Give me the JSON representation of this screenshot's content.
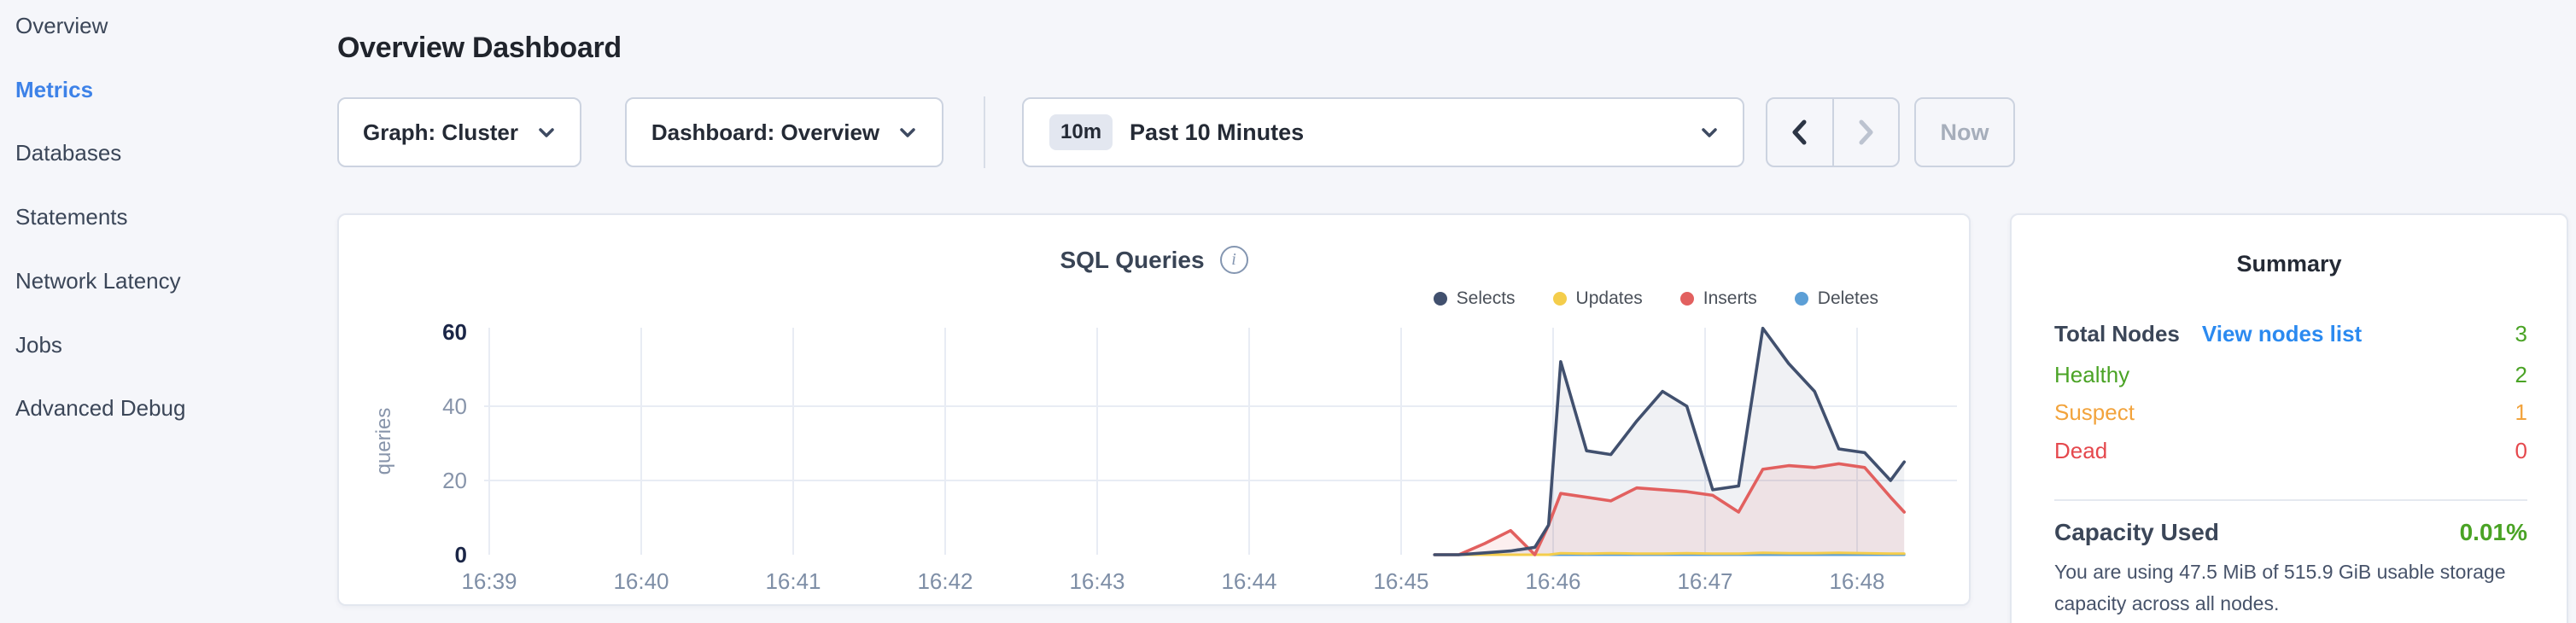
{
  "sidebar": {
    "items": [
      {
        "label": "Overview",
        "active": false
      },
      {
        "label": "Metrics",
        "active": true
      },
      {
        "label": "Databases",
        "active": false
      },
      {
        "label": "Statements",
        "active": false
      },
      {
        "label": "Network Latency",
        "active": false
      },
      {
        "label": "Jobs",
        "active": false
      },
      {
        "label": "Advanced Debug",
        "active": false
      }
    ]
  },
  "header": {
    "title": "Overview Dashboard"
  },
  "controls": {
    "graph_label": "Graph: Cluster",
    "dashboard_label": "Dashboard: Overview",
    "time_badge": "10m",
    "time_label": "Past 10 Minutes",
    "now_label": "Now",
    "prev_enabled": true,
    "next_enabled": false
  },
  "chart_data": {
    "type": "line",
    "title": "SQL Queries",
    "ylabel": "queries",
    "xlabel": "",
    "x_ticks": [
      "16:39",
      "16:40",
      "16:41",
      "16:42",
      "16:43",
      "16:44",
      "16:45",
      "16:46",
      "16:47",
      "16:48"
    ],
    "y_ticks": [
      0,
      20,
      40,
      60
    ],
    "y_ticks_bold": [
      0,
      60
    ],
    "grid_lines_y": [
      20,
      40
    ],
    "ylim": [
      0,
      60
    ],
    "legend_position": "top-right",
    "grid": true,
    "x_minutes_after_first_tick": [
      6.22,
      6.38,
      6.55,
      6.72,
      6.88,
      6.97,
      7.05,
      7.22,
      7.38,
      7.55,
      7.72,
      7.88,
      8.05,
      8.22,
      8.38,
      8.55,
      8.72,
      8.88,
      9.05,
      9.22,
      9.31
    ],
    "series": [
      {
        "name": "Selects",
        "color": "#41506e",
        "fill": "rgba(65,80,110,0.08)",
        "values": [
          0,
          0,
          0.5,
          1,
          2,
          8,
          52,
          28,
          27,
          36,
          44,
          40,
          17.5,
          18.5,
          61,
          51.5,
          44,
          28.5,
          27.5,
          20,
          25
        ]
      },
      {
        "name": "Updates",
        "color": "#f4cd4b",
        "fill": null,
        "values": [
          0,
          0,
          0,
          0,
          0,
          0,
          0.4,
          0.3,
          0.4,
          0.3,
          0.3,
          0.4,
          0.3,
          0.3,
          0.5,
          0.4,
          0.4,
          0.5,
          0.4,
          0.3,
          0.3
        ]
      },
      {
        "name": "Inserts",
        "color": "#e2605f",
        "fill": "rgba(226,96,95,0.10)",
        "values": [
          0,
          0,
          3,
          6.5,
          0,
          8,
          16.5,
          15.5,
          14.5,
          18,
          17.5,
          17,
          16,
          11.5,
          23,
          24,
          23.5,
          24.5,
          23.5,
          15.5,
          11.5
        ]
      },
      {
        "name": "Deletes",
        "color": "#5c9fd6",
        "fill": null,
        "values": [
          0,
          0,
          0,
          0,
          0,
          0,
          0,
          0,
          0,
          0,
          0,
          0,
          0,
          0,
          0,
          0,
          0,
          0,
          0,
          0,
          0
        ]
      }
    ]
  },
  "summary": {
    "title": "Summary",
    "rows": [
      {
        "label": "Total Nodes",
        "link": "View nodes list",
        "value": "3",
        "label_color": "#3b4658",
        "value_color": "#4aa325",
        "bold": true
      },
      {
        "label": "Healthy",
        "link": null,
        "value": "2",
        "label_color": "#4aa325",
        "value_color": "#4aa325",
        "bold": false
      },
      {
        "label": "Suspect",
        "link": null,
        "value": "1",
        "label_color": "#f2a33c",
        "value_color": "#f2a33c",
        "bold": false
      },
      {
        "label": "Dead",
        "link": null,
        "value": "0",
        "label_color": "#e5484d",
        "value_color": "#e5484d",
        "bold": false
      }
    ],
    "capacity": {
      "label": "Capacity Used",
      "value": "0.01%",
      "value_color": "#4aa325",
      "description": "You are using 47.5 MiB of 515.9 GiB usable storage capacity across all nodes."
    }
  },
  "colors": {
    "accent_blue": "#3d82e8",
    "link_blue": "#2b8af0",
    "green": "#4aa325",
    "orange": "#f2a33c",
    "red": "#e5484d",
    "grid": "#e8ecf4",
    "tick_muted": "#8794aa",
    "tick_bold": "#1b2647"
  }
}
